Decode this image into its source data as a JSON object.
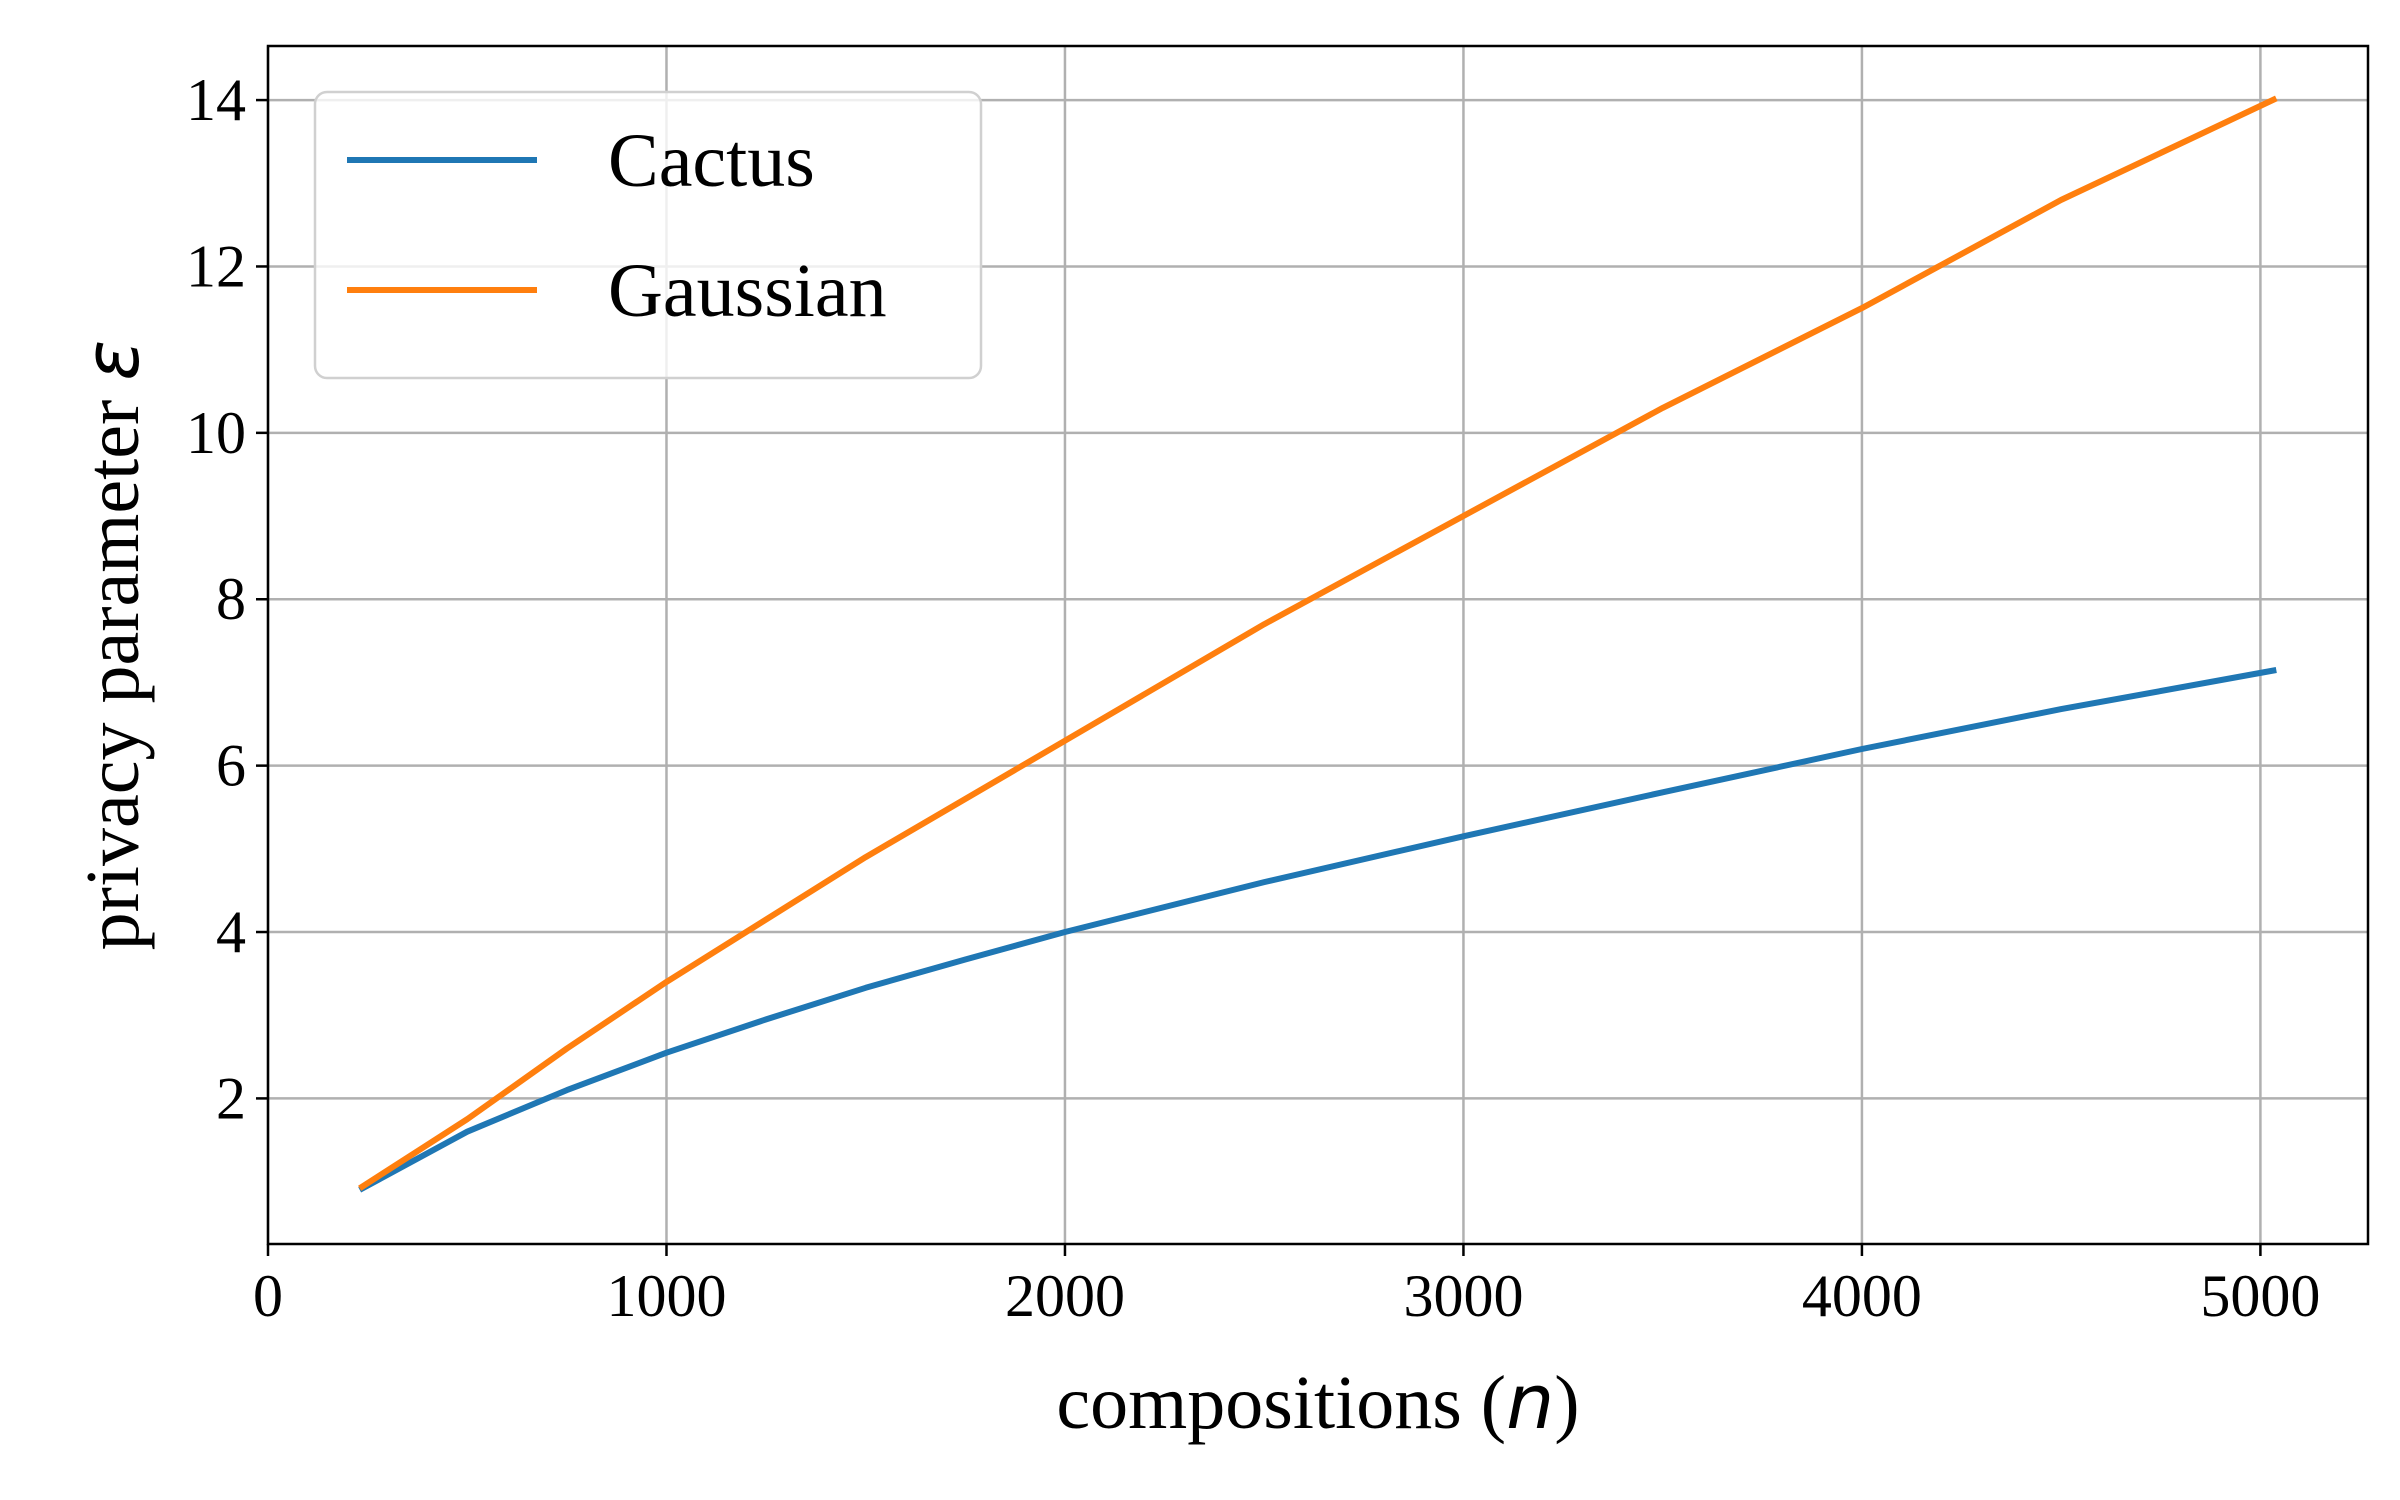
{
  "chart_data": {
    "type": "line",
    "xlabel": {
      "pre": "compositions (",
      "var": "n",
      "post": ")"
    },
    "ylabel": {
      "pre": "privacy parameter ",
      "var": "ε"
    },
    "xlim": [
      0,
      5270
    ],
    "ylim": [
      0.25,
      14.65
    ],
    "xticks": [
      0,
      1000,
      2000,
      3000,
      4000,
      5000
    ],
    "yticks": [
      2,
      4,
      6,
      8,
      10,
      12,
      14
    ],
    "grid": true,
    "legend_position": "top-left",
    "series": [
      {
        "name": "Cactus",
        "color": "#1f77b4",
        "x": [
          230,
          500,
          750,
          1000,
          1250,
          1500,
          1750,
          2000,
          2500,
          3000,
          3500,
          4000,
          4500,
          5040
        ],
        "y": [
          0.9,
          1.6,
          2.1,
          2.55,
          2.95,
          3.33,
          3.67,
          4.0,
          4.6,
          5.15,
          5.68,
          6.2,
          6.68,
          7.15
        ]
      },
      {
        "name": "Gaussian",
        "color": "#ff7f0e",
        "x": [
          230,
          500,
          750,
          1000,
          1500,
          2000,
          2500,
          3000,
          3500,
          4000,
          4500,
          5040
        ],
        "y": [
          0.92,
          1.75,
          2.6,
          3.4,
          4.9,
          6.3,
          7.7,
          9.0,
          10.3,
          11.5,
          12.8,
          14.02
        ]
      }
    ]
  }
}
